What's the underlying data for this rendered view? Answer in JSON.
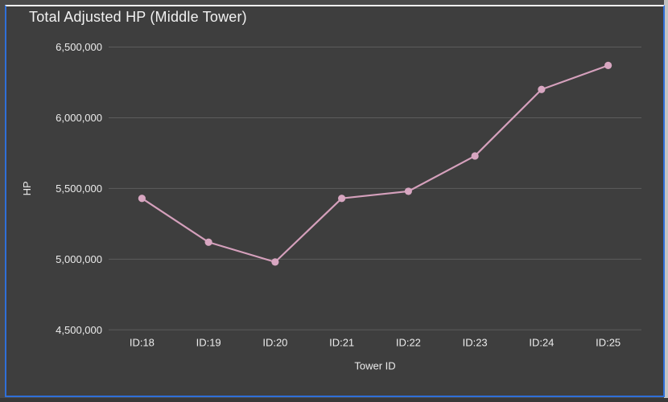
{
  "panel": {
    "title": "Total Adjusted HP (Middle Tower)"
  },
  "chart_data": {
    "type": "line",
    "title": "Total Adjusted HP (Middle Tower)",
    "xlabel": "Tower ID",
    "ylabel": "HP",
    "categories": [
      "ID:18",
      "ID:19",
      "ID:20",
      "ID:21",
      "ID:22",
      "ID:23",
      "ID:24",
      "ID:25"
    ],
    "values": [
      5430000,
      5120000,
      4980000,
      5430000,
      5480000,
      5730000,
      6200000,
      6370000
    ],
    "ylim": [
      4500000,
      6500000
    ],
    "ytick_step": 500000,
    "ytick_labels": [
      "6,500,000",
      "6,000,000",
      "5,500,000",
      "5,000,000",
      "4,500,000"
    ],
    "grid": true,
    "legend": false,
    "line_color": "#d5a0bc",
    "point_color": "#d8a6c1",
    "grid_color": "#5c5c5c",
    "background_color": "#3e3e3e",
    "text_color": "#ececec"
  },
  "frame": {
    "selection_border_color": "#2f6fd8",
    "top_border_color": "#f2f2f2",
    "page_background": "#4a4a4a"
  }
}
